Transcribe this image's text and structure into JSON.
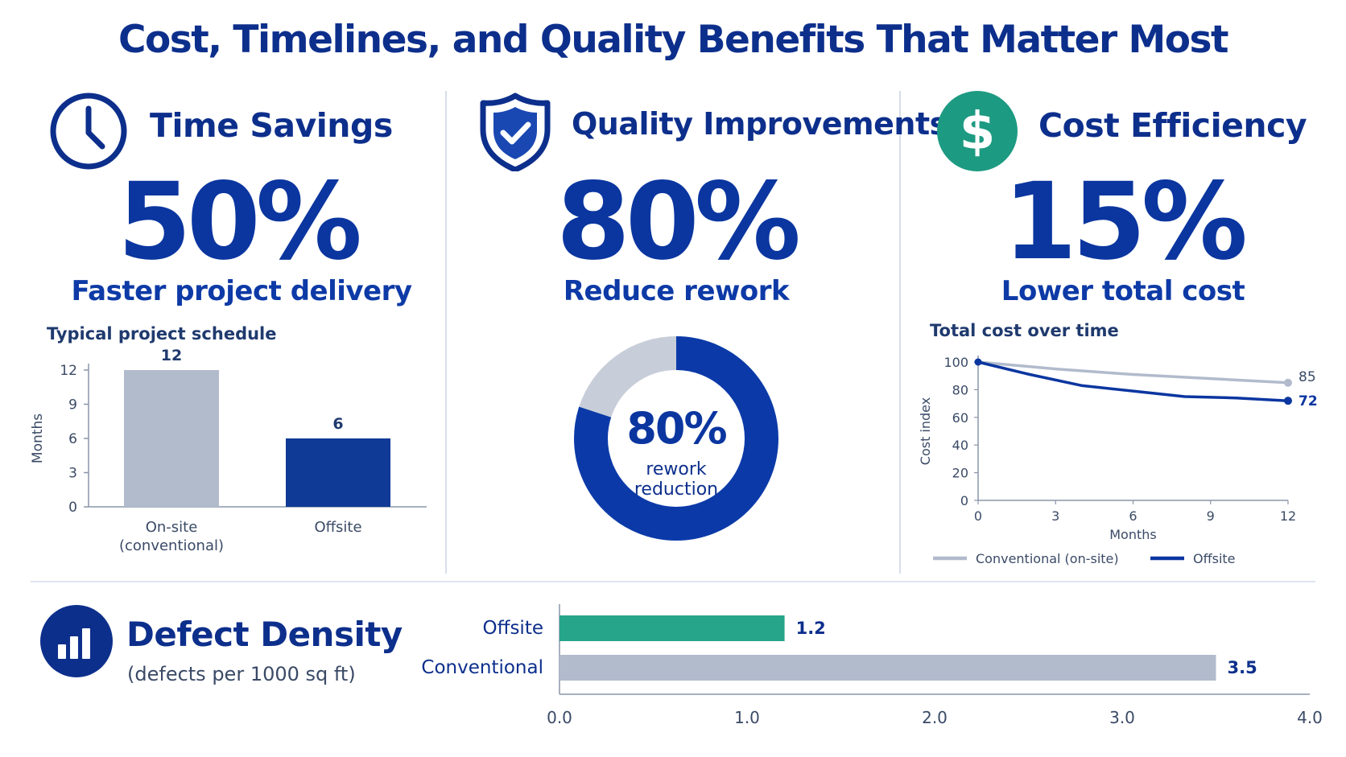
{
  "title": "Cost, Timelines, and Quality Benefits That Matter Most",
  "colors": {
    "navy": "#0d2f8c",
    "blue": "#0b36a0",
    "gray": "#b1bbcc",
    "teal": "#26a58a"
  },
  "panels": {
    "time": {
      "icon": "clock-icon",
      "name": "Time Savings",
      "stat": "50%",
      "caption": "Faster project delivery"
    },
    "quality": {
      "icon": "shield-check-icon",
      "name": "Quality Improvements",
      "stat": "80%",
      "caption": "Reduce rework"
    },
    "cost": {
      "icon": "dollar-icon",
      "name": "Cost Efficiency",
      "stat": "15%",
      "caption": "Lower total cost"
    },
    "defect": {
      "icon": "bar-chart-icon",
      "name": "Defect Density",
      "subtitle": "(defects per 1000 sq ft)"
    }
  },
  "chart_data": [
    {
      "id": "schedule",
      "type": "bar",
      "title": "Typical project schedule",
      "ylabel": "Months",
      "ylim": [
        0,
        12
      ],
      "yticks": [
        0,
        3,
        6,
        9,
        12
      ],
      "categories": [
        [
          "On-site",
          "(conventional)"
        ],
        [
          "Offsite"
        ]
      ],
      "values": [
        12,
        6
      ],
      "colors": [
        "#b1bbcc",
        "#0f3a96"
      ]
    },
    {
      "id": "rework",
      "type": "pie",
      "center_value": "80%",
      "center_label": [
        "rework",
        "reduction"
      ],
      "values": [
        80,
        20
      ],
      "colors": [
        "#0b3aa8",
        "#c7ced9"
      ]
    },
    {
      "id": "cost",
      "type": "line",
      "title": "Total cost over time",
      "xlabel": "Months",
      "ylabel": "Cost index",
      "xlim": [
        0,
        12
      ],
      "ylim": [
        0,
        100
      ],
      "xticks": [
        0,
        3,
        6,
        9,
        12
      ],
      "yticks": [
        0,
        20,
        40,
        60,
        80,
        100
      ],
      "series": [
        {
          "name": "Conventional (on-site)",
          "color": "#b1bbcc",
          "points": [
            [
              0,
              100
            ],
            [
              3,
              95
            ],
            [
              6,
              91
            ],
            [
              9,
              88
            ],
            [
              12,
              85
            ]
          ],
          "end_label": "85"
        },
        {
          "name": "Offsite",
          "color": "#0b36a0",
          "points": [
            [
              0,
              100
            ],
            [
              2,
              91
            ],
            [
              4,
              83
            ],
            [
              6,
              79
            ],
            [
              8,
              75
            ],
            [
              10,
              74
            ],
            [
              12,
              72
            ]
          ],
          "end_label": "72"
        }
      ],
      "legend": "bottom"
    },
    {
      "id": "defects",
      "type": "bar",
      "orientation": "horizontal",
      "categories": [
        "Offsite",
        "Conventional"
      ],
      "values": [
        1.2,
        3.5
      ],
      "value_labels": [
        "1.2",
        "3.5"
      ],
      "colors": [
        "#26a58a",
        "#b1bbcc"
      ],
      "xlim": [
        0,
        4
      ],
      "xticks": [
        "0.0",
        "1.0",
        "2.0",
        "3.0",
        "4.0"
      ]
    }
  ]
}
